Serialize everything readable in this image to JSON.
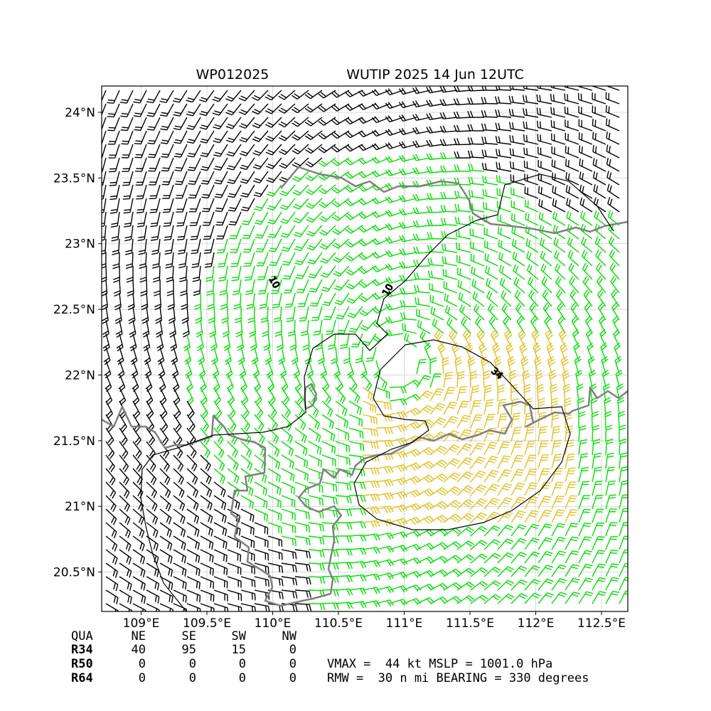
{
  "title": {
    "storm_id": "WP012025",
    "storm_name_time": "WUTIP 2025 14 Jun 12UTC"
  },
  "map": {
    "lon_range": [
      108.7,
      112.7
    ],
    "lat_range": [
      20.2,
      24.2
    ],
    "x_ticks": [
      {
        "value": 109.0,
        "label": "109°E"
      },
      {
        "value": 109.5,
        "label": "109.5°E"
      },
      {
        "value": 110.0,
        "label": "110°E"
      },
      {
        "value": 110.5,
        "label": "110.5°E"
      },
      {
        "value": 111.0,
        "label": "111°E"
      },
      {
        "value": 111.5,
        "label": "111.5°E"
      },
      {
        "value": 112.0,
        "label": "112°E"
      },
      {
        "value": 112.5,
        "label": "112.5°E"
      }
    ],
    "y_ticks": [
      {
        "value": 20.5,
        "label": "20.5°N"
      },
      {
        "value": 21.0,
        "label": "21°N"
      },
      {
        "value": 21.5,
        "label": "21.5°N"
      },
      {
        "value": 22.0,
        "label": "22°N"
      },
      {
        "value": 22.5,
        "label": "22.5°N"
      },
      {
        "value": 23.0,
        "label": "23°N"
      },
      {
        "value": 23.5,
        "label": "23.5°N"
      },
      {
        "value": 24.0,
        "label": "24°N"
      }
    ],
    "storm_center": {
      "lon": 110.95,
      "lat": 22.1
    },
    "contours": [
      {
        "label": "10",
        "color": "#000000"
      },
      {
        "label": "10",
        "color": "#000000"
      },
      {
        "label": "34",
        "color": "#000000"
      }
    ],
    "colors": {
      "barb_weak": "#000000",
      "barb_34kt": "#00e400",
      "barb_50kt": "#e6c020",
      "coastline": "#808080",
      "contour": "#000000",
      "grid": "#d8d8d8"
    }
  },
  "wind_radii": {
    "header": [
      "QUA",
      "NE",
      "SE",
      "SW",
      "NW"
    ],
    "rows": [
      {
        "label": "R34",
        "values": [
          "40",
          "95",
          "15",
          "0"
        ]
      },
      {
        "label": "R50",
        "values": [
          "0",
          "0",
          "0",
          "0"
        ]
      },
      {
        "label": "R64",
        "values": [
          "0",
          "0",
          "0",
          "0"
        ]
      }
    ]
  },
  "summary": {
    "line1": "VMAX =  44 kt MSLP = 1001.0 hPa",
    "line2": "RMW =  30 n mi BEARING = 330 degrees"
  }
}
